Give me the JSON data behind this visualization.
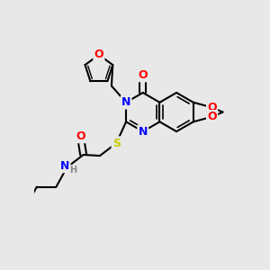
{
  "bg_color": "#e8e8e8",
  "atom_colors": {
    "N": "#0000ff",
    "O": "#ff0000",
    "S": "#cccc00",
    "H": "#888888"
  },
  "bond_color": "#000000",
  "bond_width": 1.5,
  "figsize": [
    3.0,
    3.0
  ],
  "dpi": 100
}
